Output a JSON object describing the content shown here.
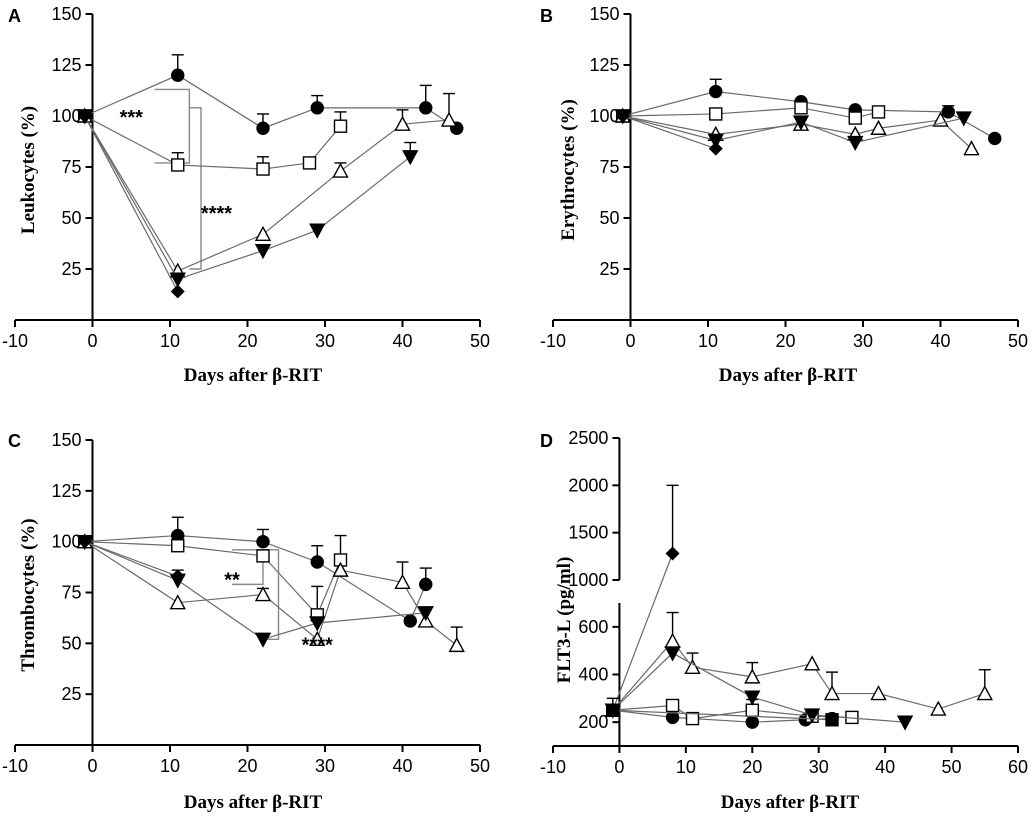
{
  "chart_data": [
    {
      "type": "line",
      "panel": "A",
      "xlabel": "Days after β-RIT",
      "ylabel": "Leukocytes (%)",
      "xlim": [
        -10,
        50
      ],
      "ylim": [
        0,
        150
      ],
      "xticks": [
        -10,
        0,
        10,
        20,
        30,
        40,
        50
      ],
      "yticks": [
        25,
        50,
        75,
        100,
        125,
        150
      ],
      "series": [
        {
          "name": "filled-circle",
          "marker": "circle",
          "fill": "filled",
          "points": [
            [
              -1,
              100
            ],
            [
              11,
              120
            ],
            [
              22,
              94
            ],
            [
              29,
              104
            ],
            [
              43,
              104
            ],
            [
              47,
              94
            ]
          ],
          "errors": [
            0,
            10,
            7,
            6,
            11,
            0
          ]
        },
        {
          "name": "open-square",
          "marker": "square",
          "fill": "open",
          "points": [
            [
              -1,
              100
            ],
            [
              11,
              76
            ],
            [
              22,
              74
            ],
            [
              28,
              77
            ],
            [
              32,
              95
            ]
          ],
          "errors": [
            0,
            6,
            6,
            0,
            7
          ]
        },
        {
          "name": "open-triangle",
          "marker": "triangle",
          "fill": "open",
          "points": [
            [
              -1,
              100
            ],
            [
              11,
              24
            ],
            [
              22,
              42
            ],
            [
              32,
              73
            ],
            [
              40,
              96
            ],
            [
              46,
              98
            ]
          ],
          "errors": [
            0,
            0,
            0,
            4,
            7,
            13
          ]
        },
        {
          "name": "filled-inverted-triangle",
          "marker": "triangle-down",
          "fill": "filled",
          "points": [
            [
              -1,
              100
            ],
            [
              11,
              20
            ],
            [
              22,
              34
            ],
            [
              29,
              44
            ],
            [
              41,
              80
            ]
          ],
          "errors": [
            0,
            0,
            0,
            0,
            7
          ]
        },
        {
          "name": "filled-diamond",
          "marker": "diamond",
          "fill": "filled",
          "points": [
            [
              -1,
              100
            ],
            [
              11,
              14
            ]
          ],
          "errors": [
            0,
            0
          ]
        }
      ],
      "annotations": [
        {
          "text": "***",
          "x": 5,
          "y": 96
        },
        {
          "text": "****",
          "x": 16,
          "y": 49
        }
      ],
      "brackets": [
        {
          "x_left": 8,
          "x_right": 12.5,
          "y_top": 113,
          "y_bottom": 77
        },
        {
          "x_left": 12.5,
          "x_right": 14,
          "y_top": 104,
          "y_bottom": 25
        }
      ]
    },
    {
      "type": "line",
      "panel": "B",
      "xlabel": "Days after β-RIT",
      "ylabel": "Erythrocytes (%)",
      "xlim": [
        -10,
        50
      ],
      "ylim": [
        0,
        150
      ],
      "xticks": [
        -10,
        0,
        10,
        20,
        30,
        40,
        50
      ],
      "yticks": [
        25,
        50,
        75,
        100,
        125,
        150
      ],
      "series": [
        {
          "name": "filled-circle",
          "marker": "circle",
          "fill": "filled",
          "points": [
            [
              -1,
              100
            ],
            [
              11,
              112
            ],
            [
              22,
              107
            ],
            [
              29,
              103
            ],
            [
              41,
              102
            ],
            [
              47,
              89
            ]
          ],
          "errors": [
            0,
            6,
            0,
            0,
            3,
            0
          ]
        },
        {
          "name": "open-square",
          "marker": "square",
          "fill": "open",
          "points": [
            [
              -1,
              100
            ],
            [
              11,
              101
            ],
            [
              22,
              104
            ],
            [
              29,
              99
            ],
            [
              32,
              102
            ]
          ],
          "errors": [
            0,
            0,
            0,
            0,
            0
          ]
        },
        {
          "name": "open-triangle",
          "marker": "triangle",
          "fill": "open",
          "points": [
            [
              -1,
              100
            ],
            [
              11,
              91
            ],
            [
              22,
              96
            ],
            [
              29,
              91
            ],
            [
              32,
              94
            ],
            [
              40,
              98
            ],
            [
              44,
              84
            ]
          ],
          "errors": [
            0,
            0,
            0,
            0,
            0,
            0,
            0
          ]
        },
        {
          "name": "filled-inverted-triangle",
          "marker": "triangle-down",
          "fill": "filled",
          "points": [
            [
              -1,
              100
            ],
            [
              11,
              88
            ],
            [
              22,
              97
            ],
            [
              29,
              87
            ],
            [
              43,
              99
            ]
          ],
          "errors": [
            0,
            0,
            0,
            0,
            0
          ]
        },
        {
          "name": "filled-diamond",
          "marker": "diamond",
          "fill": "filled",
          "points": [
            [
              -1,
              100
            ],
            [
              11,
              84
            ]
          ],
          "errors": [
            0,
            0
          ]
        }
      ]
    },
    {
      "type": "line",
      "panel": "C",
      "xlabel": "Days after β-RIT",
      "ylabel": "Thrombocytes (%)",
      "xlim": [
        -10,
        50
      ],
      "ylim": [
        0,
        150
      ],
      "xticks": [
        -10,
        0,
        10,
        20,
        30,
        40,
        50
      ],
      "yticks": [
        25,
        50,
        75,
        100,
        125,
        150
      ],
      "series": [
        {
          "name": "filled-circle",
          "marker": "circle",
          "fill": "filled",
          "points": [
            [
              -1,
              100
            ],
            [
              11,
              103
            ],
            [
              22,
              100
            ],
            [
              29,
              90
            ],
            [
              41,
              61
            ],
            [
              43,
              79
            ]
          ],
          "errors": [
            0,
            9,
            6,
            8,
            0,
            8
          ]
        },
        {
          "name": "open-square",
          "marker": "square",
          "fill": "open",
          "points": [
            [
              -1,
              100
            ],
            [
              11,
              98
            ],
            [
              22,
              93
            ],
            [
              29,
              64
            ],
            [
              32,
              91
            ]
          ],
          "errors": [
            0,
            0,
            0,
            14,
            12
          ]
        },
        {
          "name": "open-triangle",
          "marker": "triangle",
          "fill": "open",
          "points": [
            [
              -1,
              100
            ],
            [
              11,
              70
            ],
            [
              22,
              74
            ],
            [
              29,
              52
            ],
            [
              32,
              86
            ],
            [
              40,
              80
            ],
            [
              43,
              61
            ],
            [
              47,
              49
            ]
          ],
          "errors": [
            0,
            0,
            3,
            0,
            0,
            10,
            0,
            9
          ]
        },
        {
          "name": "filled-inverted-triangle",
          "marker": "triangle-down",
          "fill": "filled",
          "points": [
            [
              -1,
              100
            ],
            [
              11,
              81
            ],
            [
              22,
              52
            ],
            [
              29,
              60
            ],
            [
              43,
              65
            ]
          ],
          "errors": [
            0,
            5,
            0,
            0,
            0
          ]
        },
        {
          "name": "filled-diamond",
          "marker": "diamond",
          "fill": "filled",
          "points": [
            [
              -1,
              100
            ],
            [
              11,
              83
            ]
          ],
          "errors": [
            0,
            0
          ]
        }
      ],
      "annotations": [
        {
          "text": "**",
          "x": 18,
          "y": 78
        },
        {
          "text": "****",
          "x": 29,
          "y": 46
        }
      ],
      "brackets": [
        {
          "x_left": 18,
          "x_right": 22,
          "y_top": 96,
          "y_bottom": 79
        },
        {
          "x_left": 22,
          "x_right": 24,
          "y_top": 96,
          "y_bottom": 52
        }
      ]
    },
    {
      "type": "line",
      "panel": "D",
      "xlabel": "Days after β-RIT",
      "ylabel": "FLT3-L (pg/ml)",
      "xlim": [
        -10,
        60
      ],
      "ylim_lower": [
        100,
        700
      ],
      "ylim_upper": [
        1000,
        2500
      ],
      "xticks": [
        -10,
        0,
        10,
        20,
        30,
        40,
        50,
        60
      ],
      "yticks_lower": [
        200,
        400,
        600
      ],
      "yticks_upper": [
        1000,
        1500,
        2000,
        2500
      ],
      "series": [
        {
          "name": "filled-circle",
          "marker": "circle",
          "fill": "filled",
          "points": [
            [
              -1,
              250
            ],
            [
              8,
              220
            ],
            [
              20,
              200
            ],
            [
              28,
              210
            ],
            [
              32,
              215
            ]
          ],
          "errors": [
            0,
            0,
            0,
            0,
            0
          ]
        },
        {
          "name": "open-square",
          "marker": "square",
          "fill": "open",
          "points": [
            [
              -1,
              250
            ],
            [
              8,
              270
            ],
            [
              11,
              215
            ],
            [
              20,
              250
            ],
            [
              29,
              225
            ],
            [
              35,
              220
            ]
          ],
          "errors": [
            0,
            0,
            0,
            45,
            0,
            0
          ]
        },
        {
          "name": "open-triangle",
          "marker": "triangle",
          "fill": "open",
          "points": [
            [
              -1,
              250
            ],
            [
              8,
              540
            ],
            [
              11,
              430
            ],
            [
              20,
              390
            ],
            [
              29,
              445
            ],
            [
              32,
              320
            ],
            [
              39,
              320
            ],
            [
              48,
              255
            ],
            [
              55,
              320
            ]
          ],
          "errors": [
            0,
            120,
            60,
            60,
            0,
            90,
            0,
            0,
            100
          ]
        },
        {
          "name": "filled-inverted-triangle",
          "marker": "triangle-down",
          "fill": "filled",
          "points": [
            [
              -1,
              250
            ],
            [
              8,
              490
            ],
            [
              20,
              305
            ],
            [
              29,
              230
            ],
            [
              43,
              200
            ]
          ],
          "errors": [
            0,
            0,
            0,
            0,
            0
          ]
        },
        {
          "name": "filled-diamond",
          "marker": "diamond",
          "fill": "filled",
          "points": [
            [
              -1,
              250
            ],
            [
              8,
              1280
            ]
          ],
          "errors": [
            0,
            720
          ]
        },
        {
          "name": "filled-square",
          "marker": "square",
          "fill": "filled",
          "points": [
            [
              -1,
              250
            ],
            [
              32,
              210
            ]
          ],
          "errors": [
            50,
            0
          ]
        }
      ]
    }
  ]
}
